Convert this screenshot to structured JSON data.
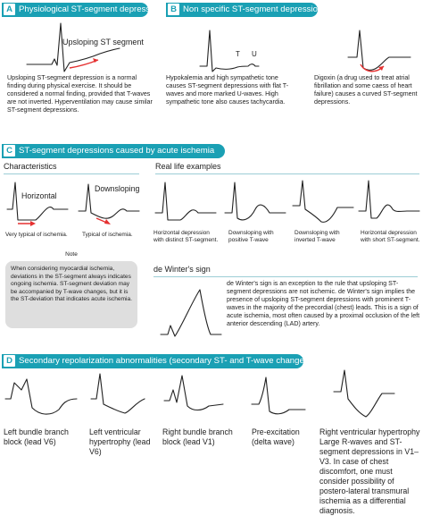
{
  "sectionA": {
    "badge": "A",
    "title": "Physiological ST-segment depressions",
    "curve_label": "Upsloping ST segment",
    "description": "Upsloping ST-segment depression is a normal finding during physical exercise. It should be considered a normal finding, provided that T-waves are not inverted. Hyperventilation may cause similar ST-segment depressions."
  },
  "sectionB": {
    "badge": "B",
    "title": "Non specific ST-segment depression",
    "t_label": "T",
    "u_label": "U",
    "text_left": "Hypokalemia and high sympathetic tone causes ST-segment depressions with flat T-waves and more marked U-waves. High sympathetic tone also causes tachycardia.",
    "text_right": "Digoxin (a drug used to treat atrial fibrillation and some caess of heart failure) causes a curved ST-segment depressions."
  },
  "sectionC": {
    "badge": "C",
    "title": "ST-segment depressions caused by acute ischemia",
    "characteristics_title": "Characteristics",
    "horizontal_label": "Horizontal",
    "downsloping_label": "Downsloping",
    "horizontal_caption": "Very typical of ischemia.",
    "downsloping_caption": "Typical of ischemia.",
    "real_life_title": "Real life examples",
    "examples": [
      "Horizontal depression with distinct ST-segment.",
      "Downsloping with positive T-wave",
      "Downsloping with inverted T-wave",
      "Horizontal depression with short ST-segment."
    ],
    "note_title": "Note",
    "note_text": "When considering myocardial ischemia, deviations in the ST-segment always indicates ongoing ischemia. ST-segment deviation may be accompanied by T-wave changes, but it is the ST-deviation that indicates acute ischemia.",
    "dewinter_title": "de Winter's sign",
    "dewinter_text": "de Winter's sign is an exception to the rule that upsloping ST-segment depressions are not ischemic. de Winter's sign implies the presence of upsloping ST-segment depressions with prominent T-waves in the majority of the precordial (chest) leads. This is a sign of acute ischemia, most often caused by a proximal occlusion of the left anterior descending (LAD) artery."
  },
  "sectionD": {
    "badge": "D",
    "title": "Secondary repolarization abnormalities (secondary ST- and T-wave changes)",
    "items": [
      "Left bundle branch block (lead V6)",
      "Left ventricular hypertrophy (lead V6)",
      "Right bundle branch block (lead V1)",
      "Pre-excitation (delta wave)",
      "Right ventricular hypertrophy Large R-waves and ST-segment depressions in V1–V3. In case of chest discomfort, one must consider possibility of postero-lateral transmural ischemia as a differential diagnosis."
    ]
  },
  "colors": {
    "header": "#1aa0b4",
    "rule": "#9ccdd6",
    "arrow": "#e53030",
    "note_bg": "#dedede"
  }
}
